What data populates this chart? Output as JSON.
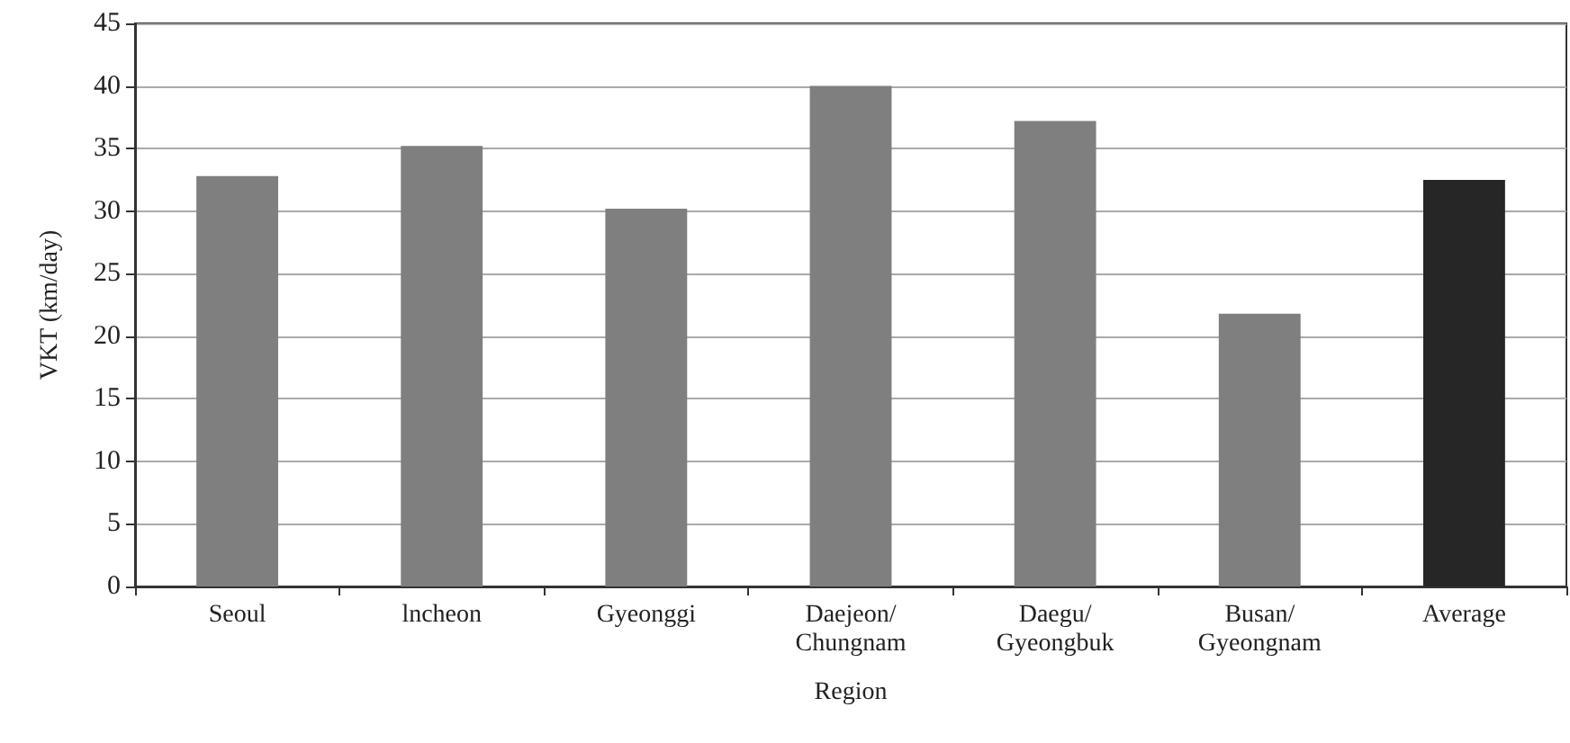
{
  "chart_data": {
    "type": "bar",
    "xlabel": "Region",
    "ylabel": "VKT (km/day)",
    "categories": [
      "Seoul",
      "lncheon",
      "Gyeonggi",
      "Daejeon/\nChungnam",
      "Daegu/\nGyeongbuk",
      "Busan/\nGyeongnam",
      "Average"
    ],
    "values": [
      32.8,
      35.2,
      30.2,
      40,
      37.2,
      21.8,
      32.5
    ],
    "colors": [
      "#7f7f7f",
      "#7f7f7f",
      "#7f7f7f",
      "#7f7f7f",
      "#7f7f7f",
      "#7f7f7f",
      "#262626"
    ],
    "ylim": [
      0,
      45
    ],
    "yticks": [
      0,
      5,
      10,
      15,
      20,
      25,
      30,
      35,
      40,
      45
    ],
    "grid": "y"
  }
}
